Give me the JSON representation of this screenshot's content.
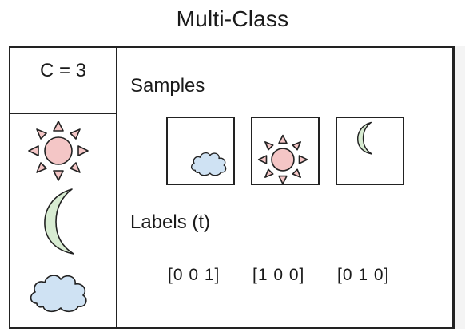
{
  "title": "Multi-Class",
  "sidebar": {
    "class_count_label": "C = 3",
    "classes": [
      {
        "icon": "sun-icon",
        "color": "#f4c6c6"
      },
      {
        "icon": "moon-icon",
        "color": "#d8ecd2"
      },
      {
        "icon": "cloud-icon",
        "color": "#cfe2f3"
      }
    ]
  },
  "samples": {
    "heading": "Samples",
    "items": [
      {
        "icon": "cloud-icon"
      },
      {
        "icon": "sun-icon"
      },
      {
        "icon": "moon-icon"
      }
    ]
  },
  "labels": {
    "heading": "Labels (t)",
    "values": [
      "[0 0 1]",
      "[1 0 0]",
      "[0 1 0]"
    ]
  },
  "colors": {
    "sun_fill": "#f4c6c6",
    "moon_fill": "#d8ecd2",
    "cloud_fill": "#cfe2f3",
    "stroke": "#222222"
  }
}
